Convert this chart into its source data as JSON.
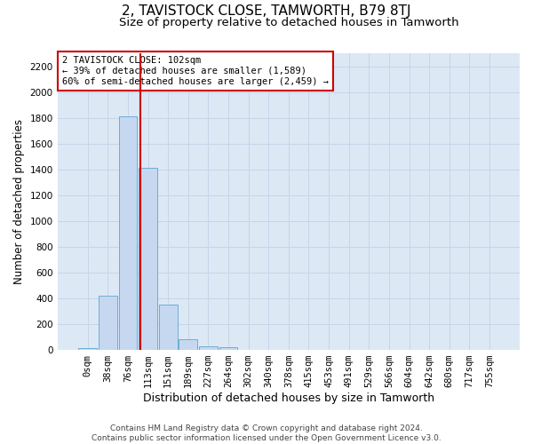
{
  "title": "2, TAVISTOCK CLOSE, TAMWORTH, B79 8TJ",
  "subtitle": "Size of property relative to detached houses in Tamworth",
  "xlabel": "Distribution of detached houses by size in Tamworth",
  "ylabel": "Number of detached properties",
  "bar_labels": [
    "0sqm",
    "38sqm",
    "76sqm",
    "113sqm",
    "151sqm",
    "189sqm",
    "227sqm",
    "264sqm",
    "302sqm",
    "340sqm",
    "378sqm",
    "415sqm",
    "453sqm",
    "491sqm",
    "529sqm",
    "566sqm",
    "604sqm",
    "642sqm",
    "680sqm",
    "717sqm",
    "755sqm"
  ],
  "bar_values": [
    15,
    420,
    1810,
    1410,
    350,
    80,
    30,
    20,
    0,
    0,
    0,
    0,
    0,
    0,
    0,
    0,
    0,
    0,
    0,
    0,
    0
  ],
  "bar_color": "#c5d8f0",
  "bar_edge_color": "#6baed6",
  "grid_color": "#c8d4e8",
  "background_color": "#dde8f5",
  "vline_x": 2.63,
  "vline_color": "#cc0000",
  "annotation_text": "2 TAVISTOCK CLOSE: 102sqm\n← 39% of detached houses are smaller (1,589)\n60% of semi-detached houses are larger (2,459) →",
  "annotation_box_color": "#ffffff",
  "annotation_box_edge": "#cc0000",
  "ylim": [
    0,
    2300
  ],
  "yticks": [
    0,
    200,
    400,
    600,
    800,
    1000,
    1200,
    1400,
    1600,
    1800,
    2000,
    2200
  ],
  "footer_line1": "Contains HM Land Registry data © Crown copyright and database right 2024.",
  "footer_line2": "Contains public sector information licensed under the Open Government Licence v3.0.",
  "title_fontsize": 11,
  "subtitle_fontsize": 9.5,
  "xlabel_fontsize": 9,
  "ylabel_fontsize": 8.5,
  "tick_fontsize": 7.5,
  "annotation_fontsize": 7.5,
  "footer_fontsize": 6.5
}
